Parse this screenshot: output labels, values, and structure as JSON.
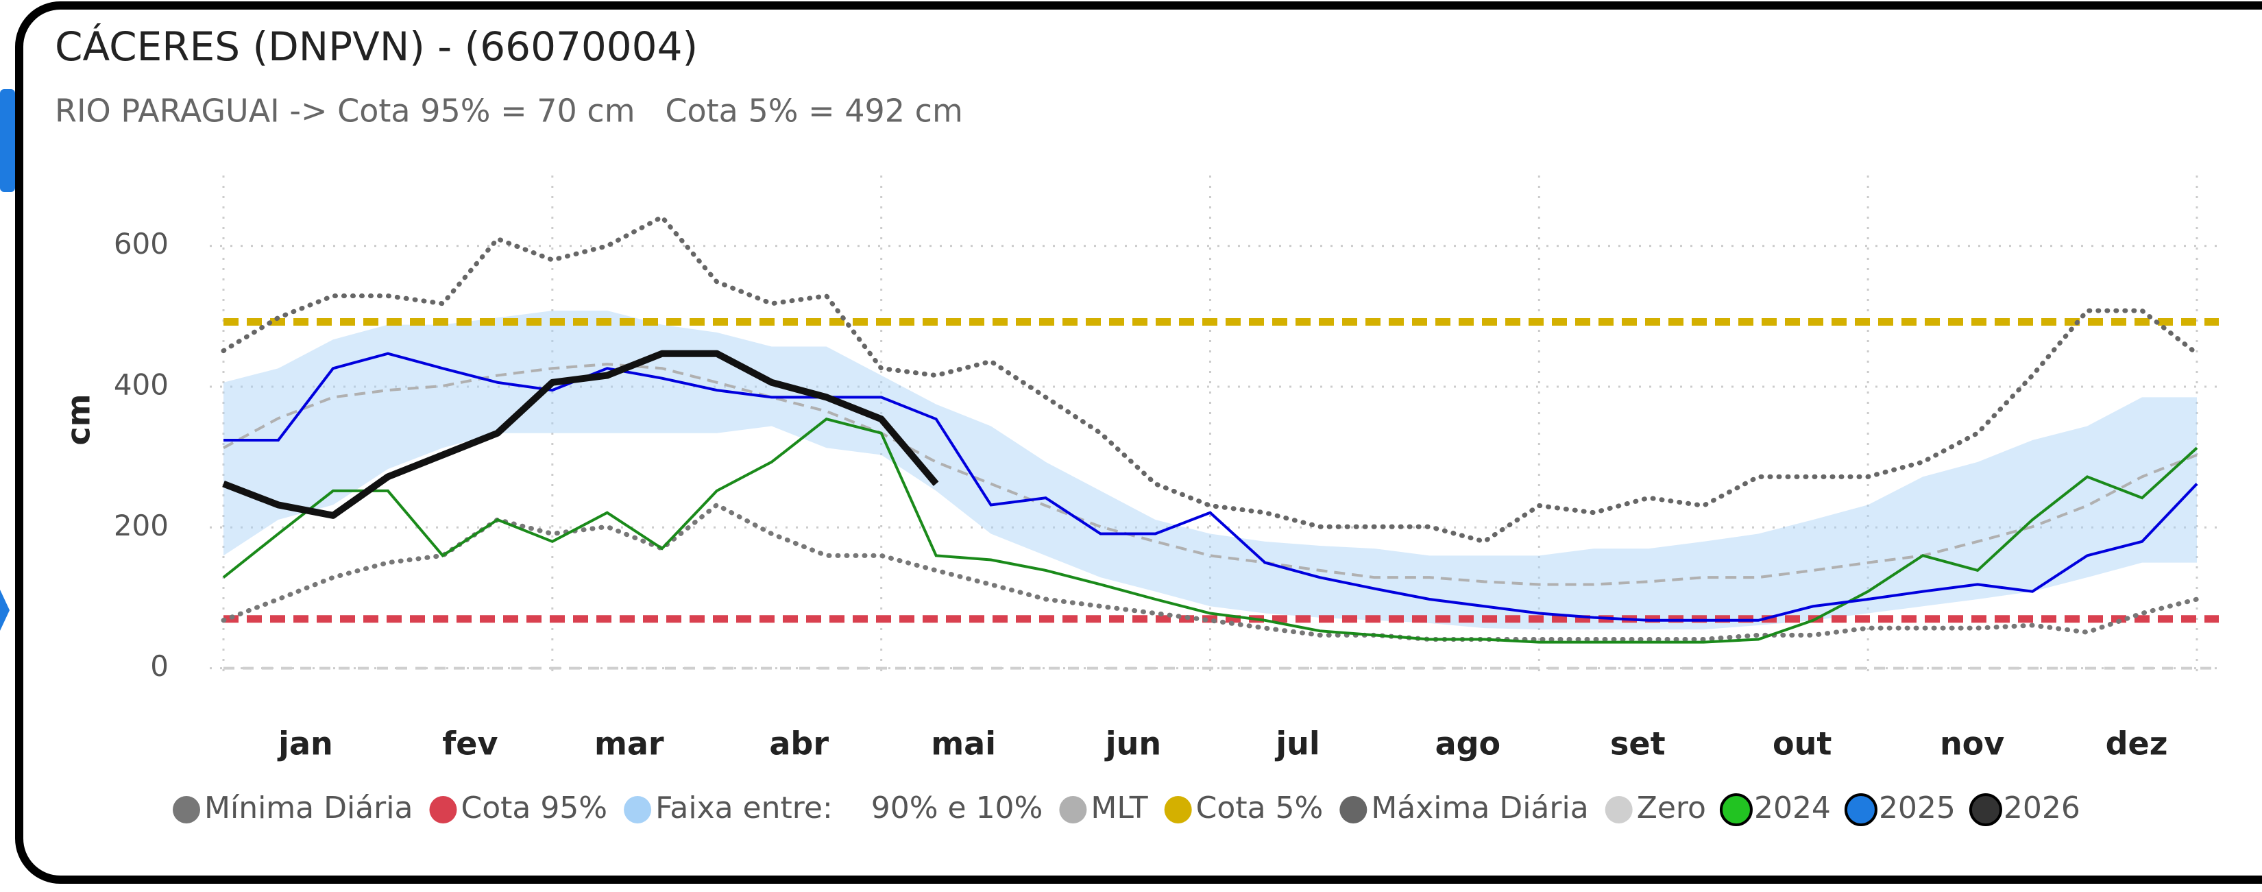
{
  "chart_data": {
    "type": "line",
    "title": "CÁCERES (DNPVN) - (66070004)",
    "subtitle": "RIO PARAGUAI -> Cota 95% = 70 cm   Cota 5% = 492 cm",
    "y_label": "cm",
    "x": [
      1,
      11,
      21,
      31,
      41,
      51,
      61,
      71,
      81,
      91,
      101,
      111,
      121,
      131,
      141,
      151,
      161,
      171,
      181,
      191,
      201,
      211,
      221,
      231,
      241,
      251,
      261,
      271,
      281,
      291,
      301,
      311,
      321,
      331,
      341,
      351,
      361
    ],
    "xlim": [
      1,
      365
    ],
    "xticks": [
      {
        "value": 16,
        "label": "jan"
      },
      {
        "value": 46,
        "label": "fev"
      },
      {
        "value": 75,
        "label": "mar"
      },
      {
        "value": 106,
        "label": "abr"
      },
      {
        "value": 136,
        "label": "mai"
      },
      {
        "value": 167,
        "label": "jun"
      },
      {
        "value": 197,
        "label": "jul"
      },
      {
        "value": 228,
        "label": "ago"
      },
      {
        "value": 259,
        "label": "set"
      },
      {
        "value": 289,
        "label": "out"
      },
      {
        "value": 320,
        "label": "nov"
      },
      {
        "value": 350,
        "label": "dez"
      }
    ],
    "xgrid": [
      1,
      61,
      121,
      181,
      241,
      301,
      361
    ],
    "ylim": [
      -15,
      700
    ],
    "yticks": [
      0,
      200,
      400,
      600
    ],
    "grid": true,
    "series": [
      {
        "name": "Mínima Diária",
        "color": "#777777",
        "kind": "line",
        "style": "dotted",
        "values": [
          68,
          98,
          129,
          150,
          160,
          211,
          191,
          201,
          170,
          232,
          191,
          160,
          160,
          139,
          119,
          98,
          88,
          78,
          68,
          57,
          47,
          47,
          41,
          41,
          41,
          41,
          41,
          41,
          47,
          47,
          57,
          57,
          57,
          61,
          51,
          78,
          98
        ]
      },
      {
        "name": "Cota 95%",
        "color": "#d9404f",
        "kind": "hline",
        "value": 70
      },
      {
        "name": "Faixa entre:    90% e 10%",
        "color": "#a6d1f7",
        "kind": "band",
        "values": [
          406,
          426,
          467,
          488,
          488,
          498,
          508,
          508,
          488,
          477,
          457,
          457,
          416,
          375,
          344,
          293,
          252,
          211,
          191,
          180,
          174,
          170,
          160,
          160,
          160,
          170,
          170,
          180,
          191,
          211,
          232,
          272,
          293,
          324,
          344,
          385,
          385
        ],
        "values_low": [
          160,
          211,
          232,
          283,
          313,
          334,
          334,
          334,
          334,
          334,
          344,
          313,
          303,
          252,
          191,
          160,
          129,
          109,
          88,
          78,
          72,
          68,
          64,
          57,
          55,
          55,
          55,
          55,
          61,
          68,
          78,
          88,
          98,
          109,
          129,
          150,
          150
        ]
      },
      {
        "name": "MLT",
        "color": "#b0b0b0",
        "kind": "line",
        "style": "dashed",
        "values": [
          313,
          355,
          385,
          395,
          401,
          416,
          426,
          432,
          426,
          406,
          385,
          365,
          334,
          293,
          262,
          231,
          201,
          180,
          160,
          150,
          139,
          129,
          129,
          123,
          119,
          119,
          123,
          129,
          129,
          139,
          150,
          160,
          180,
          201,
          231,
          272,
          303
        ]
      },
      {
        "name": "Cota 5%",
        "color": "#d4b000",
        "kind": "hline",
        "value": 492
      },
      {
        "name": "Máxima Diária",
        "color": "#666666",
        "kind": "line",
        "style": "dotted",
        "values": [
          451,
          498,
          529,
          529,
          518,
          610,
          580,
          600,
          641,
          549,
          518,
          529,
          426,
          416,
          436,
          385,
          334,
          262,
          231,
          221,
          201,
          201,
          201,
          180,
          231,
          221,
          242,
          231,
          272,
          272,
          272,
          293,
          334,
          416,
          508,
          508,
          447
        ]
      },
      {
        "name": "Zero",
        "color": "#cfcfcf",
        "kind": "hline",
        "value": 0
      },
      {
        "name": "2024",
        "color": "#1a8a1a",
        "legend_color": "#22c322",
        "kind": "line",
        "style": "solid",
        "values": [
          129,
          191,
          252,
          252,
          160,
          211,
          180,
          221,
          170,
          252,
          293,
          354,
          334,
          160,
          154,
          139,
          119,
          98,
          78,
          68,
          53,
          47,
          41,
          41,
          37,
          37,
          37,
          37,
          41,
          68,
          109,
          160,
          139,
          211,
          272,
          242,
          313
        ]
      },
      {
        "name": "2025",
        "color": "#0000dd",
        "legend_color": "#1e7be0",
        "kind": "line",
        "style": "solid",
        "values": [
          324,
          324,
          426,
          447,
          426,
          406,
          395,
          426,
          412,
          395,
          385,
          385,
          385,
          354,
          232,
          242,
          191,
          191,
          221,
          150,
          129,
          113,
          98,
          88,
          78,
          72,
          68,
          68,
          68,
          88,
          98,
          109,
          119,
          109,
          160,
          180,
          262
        ]
      },
      {
        "name": "2026",
        "color": "#111111",
        "legend_color": "#333333",
        "kind": "line",
        "style": "thick",
        "values": [
          262,
          232,
          217,
          272,
          303,
          334,
          406,
          416,
          447,
          447,
          406,
          385,
          354,
          262,
          null,
          null,
          null,
          null,
          null,
          null,
          null,
          null,
          null,
          null,
          null,
          null,
          null,
          null,
          null,
          null,
          null,
          null,
          null,
          null,
          null,
          null,
          null
        ]
      }
    ]
  }
}
